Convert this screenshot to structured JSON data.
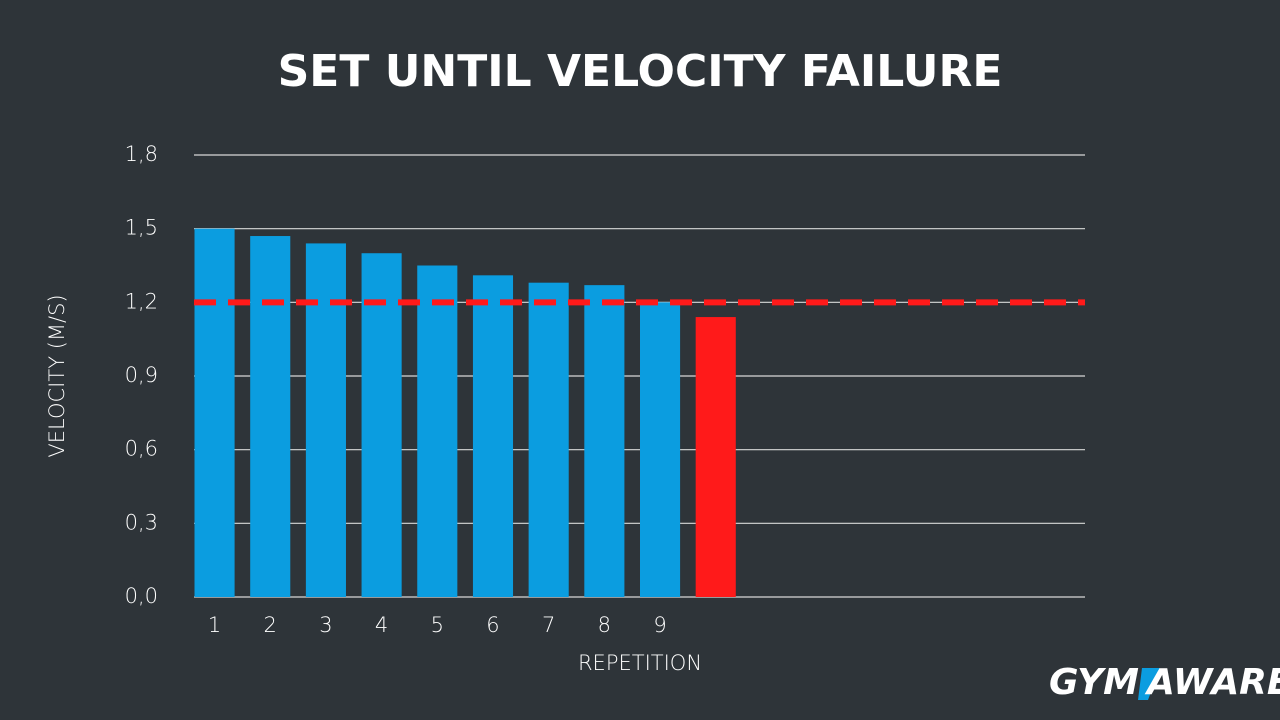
{
  "chart_data": {
    "type": "bar",
    "title": "SET UNTIL VELOCITY FAILURE",
    "x_label": "REPETITION",
    "y_label": "VELOCITY (M/S)",
    "categories": [
      "1",
      "2",
      "3",
      "4",
      "5",
      "6",
      "7",
      "8",
      "9",
      null,
      null,
      null,
      null,
      null,
      null,
      null
    ],
    "values": [
      1.5,
      1.47,
      1.44,
      1.4,
      1.35,
      1.31,
      1.28,
      1.27,
      1.2,
      1.14,
      null,
      null,
      null,
      null,
      null,
      null
    ],
    "colors": [
      "#0b9de0",
      "#0b9de0",
      "#0b9de0",
      "#0b9de0",
      "#0b9de0",
      "#0b9de0",
      "#0b9de0",
      "#0b9de0",
      "#0b9de0",
      "#ff1a1a",
      null,
      null,
      null,
      null,
      null,
      null
    ],
    "ylim": [
      0,
      1.8
    ],
    "yticks": [
      {
        "value": 0,
        "label": "0,0"
      },
      {
        "value": 0.3,
        "label": "0,3"
      },
      {
        "value": 0.6,
        "label": "0,6"
      },
      {
        "value": 0.9,
        "label": "0,9"
      },
      {
        "value": 1.2,
        "label": "1,2"
      },
      {
        "value": 1.5,
        "label": "1,5"
      },
      {
        "value": 1.8,
        "label": "1,8"
      }
    ],
    "grid": true,
    "threshold": {
      "value": 1.2,
      "color": "#ff1a1a"
    }
  },
  "logo": [
    "GYM",
    "AWARE"
  ]
}
